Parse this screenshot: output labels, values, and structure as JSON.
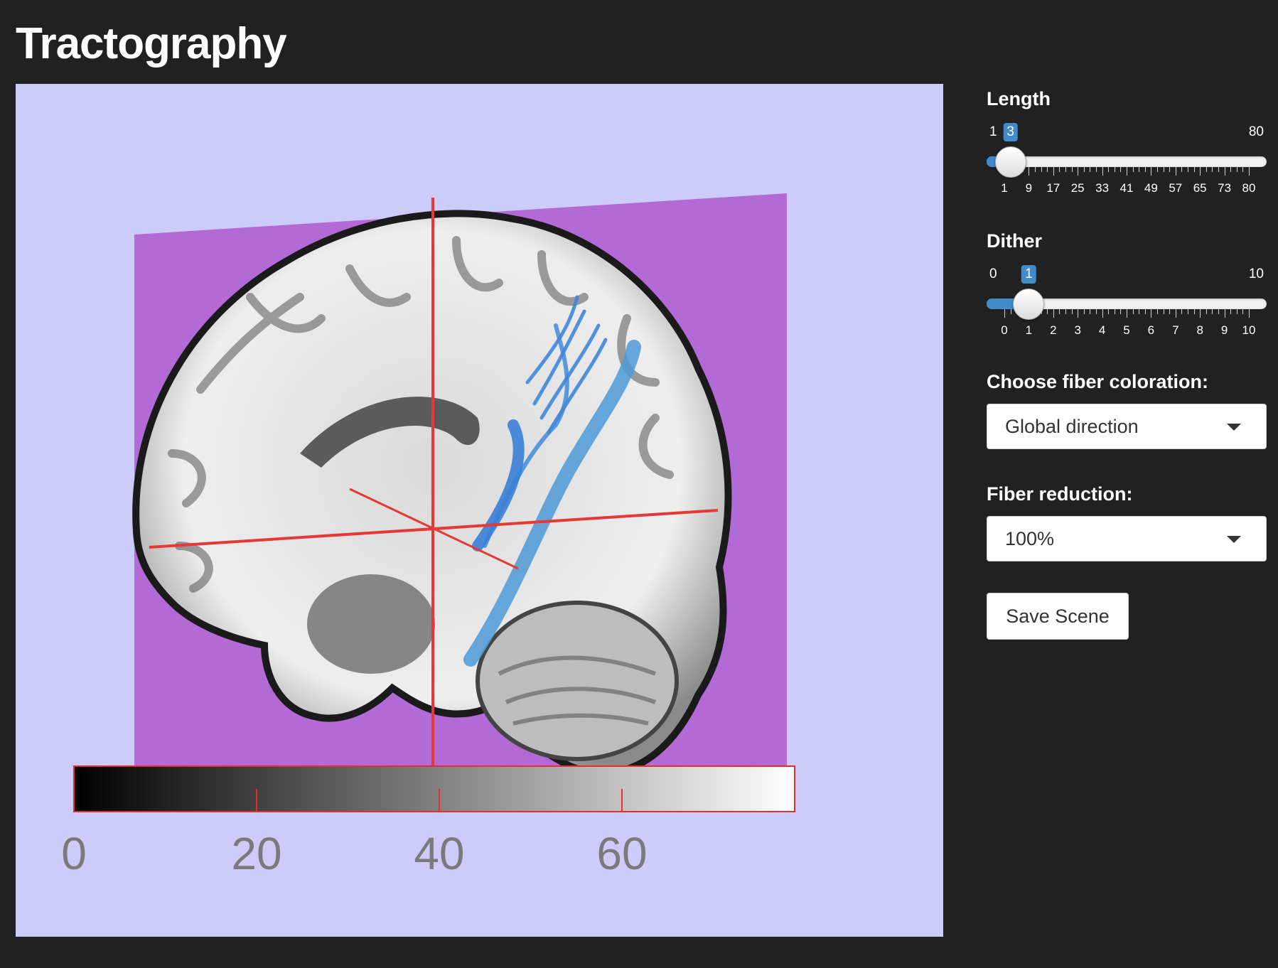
{
  "page": {
    "title": "Tractography"
  },
  "viewer": {
    "colorbar": {
      "tick_labels": [
        "0",
        "20",
        "40",
        "60"
      ],
      "colors": {
        "start": "#000000",
        "end": "#ffffff",
        "outline": "#e03030"
      }
    },
    "colors": {
      "background": "#cccbfa",
      "slice_plane": "#b36ad6",
      "crosshair": "#e53935",
      "fibers": "#4a90d9"
    }
  },
  "controls": {
    "length": {
      "label": "Length",
      "min": 1,
      "max": 80,
      "value": 3,
      "min_label": "1",
      "max_label": "80",
      "value_label": "3",
      "tick_labels": [
        "1",
        "9",
        "17",
        "25",
        "33",
        "41",
        "49",
        "57",
        "65",
        "73",
        "80"
      ]
    },
    "dither": {
      "label": "Dither",
      "min": 0,
      "max": 10,
      "value": 1,
      "min_label": "0",
      "max_label": "10",
      "value_label": "1",
      "tick_labels": [
        "0",
        "1",
        "2",
        "3",
        "4",
        "5",
        "6",
        "7",
        "8",
        "9",
        "10"
      ]
    },
    "coloration": {
      "label": "Choose fiber coloration:",
      "selected": "Global direction"
    },
    "reduction": {
      "label": "Fiber reduction:",
      "selected": "100%"
    },
    "save_button": {
      "label": "Save Scene"
    },
    "slider_accent": "#428bca"
  }
}
